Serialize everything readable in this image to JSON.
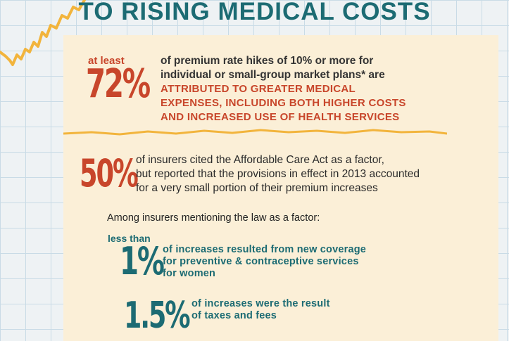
{
  "title": "TO RISING MEDICAL COSTS",
  "colors": {
    "teal": "#1c6b73",
    "red": "#c8462b",
    "gold": "#f2b43c",
    "panel": "#fbefd7"
  },
  "stat1": {
    "prefix": "at least",
    "value": "72%",
    "line1": "of premium rate hikes of 10% or more for",
    "line2": "individual or small-group market plans* are",
    "highlight1": "ATTRIBUTED TO GREATER MEDICAL",
    "highlight2": "EXPENSES, INCLUDING BOTH HIGHER COSTS",
    "highlight3": "AND INCREASED USE OF HEALTH SERVICES"
  },
  "stat2": {
    "value": "50%",
    "line1": "of insurers cited the Affordable Care Act as a factor,",
    "line2": "but reported that the provisions in effect in 2013 accounted",
    "line3": "for a very small portion of their premium increases"
  },
  "among": "Among insurers mentioning the law as a factor:",
  "stat3": {
    "prefix": "less than",
    "value": "1%",
    "line1": "of increases resulted from new coverage",
    "line2": "for preventive & contraceptive services",
    "line3": "for women"
  },
  "stat4": {
    "value": "1.5%",
    "line1": "of increases were the result",
    "line2": "of taxes and fees"
  }
}
